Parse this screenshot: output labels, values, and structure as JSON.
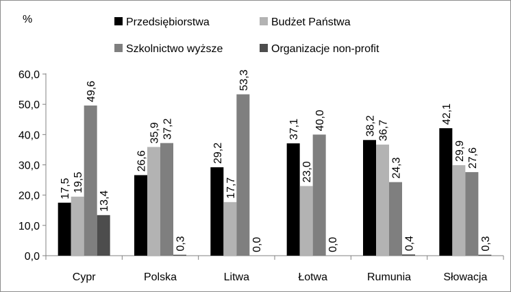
{
  "chart_data": {
    "type": "bar",
    "unit_label": "%",
    "categories": [
      "Cypr",
      "Polska",
      "Litwa",
      "Łotwa",
      "Rumunia",
      "Słowacja"
    ],
    "series": [
      {
        "name": "Przedsiębiorstwa",
        "color": "#000000",
        "values": [
          17.5,
          26.6,
          29.2,
          37.1,
          38.2,
          42.1
        ],
        "labels": [
          "17,5",
          "26,6",
          "29,2",
          "37,1",
          "38,2",
          "42,1"
        ]
      },
      {
        "name": "Budżet Państwa",
        "color": "#b3b3b3",
        "values": [
          19.5,
          35.9,
          17.7,
          23.0,
          36.7,
          29.9
        ],
        "labels": [
          "19,5",
          "35,9",
          "17,7",
          "23,0",
          "36,7",
          "29,9"
        ]
      },
      {
        "name": "Szkolnictwo wyższe",
        "color": "#7f7f7f",
        "values": [
          49.6,
          37.2,
          53.3,
          40.0,
          24.3,
          27.6
        ],
        "labels": [
          "49,6",
          "37,2",
          "53,3",
          "40,0",
          "24,3",
          "27,6"
        ]
      },
      {
        "name": "Organizacje non-profit",
        "color": "#4d4d4d",
        "values": [
          13.4,
          0.3,
          0.0,
          0.0,
          0.4,
          0.3
        ],
        "labels": [
          "13,4",
          "0,3",
          "0,0",
          "0,0",
          "0,4",
          "0,3"
        ]
      }
    ],
    "ylim": [
      0,
      60
    ],
    "yticks": [
      0,
      10,
      20,
      30,
      40,
      50,
      60
    ],
    "ytick_labels": [
      "0,0",
      "10,0",
      "20,0",
      "30,0",
      "40,0",
      "50,0",
      "60,0"
    ],
    "grid": false,
    "legend_position": "top"
  }
}
